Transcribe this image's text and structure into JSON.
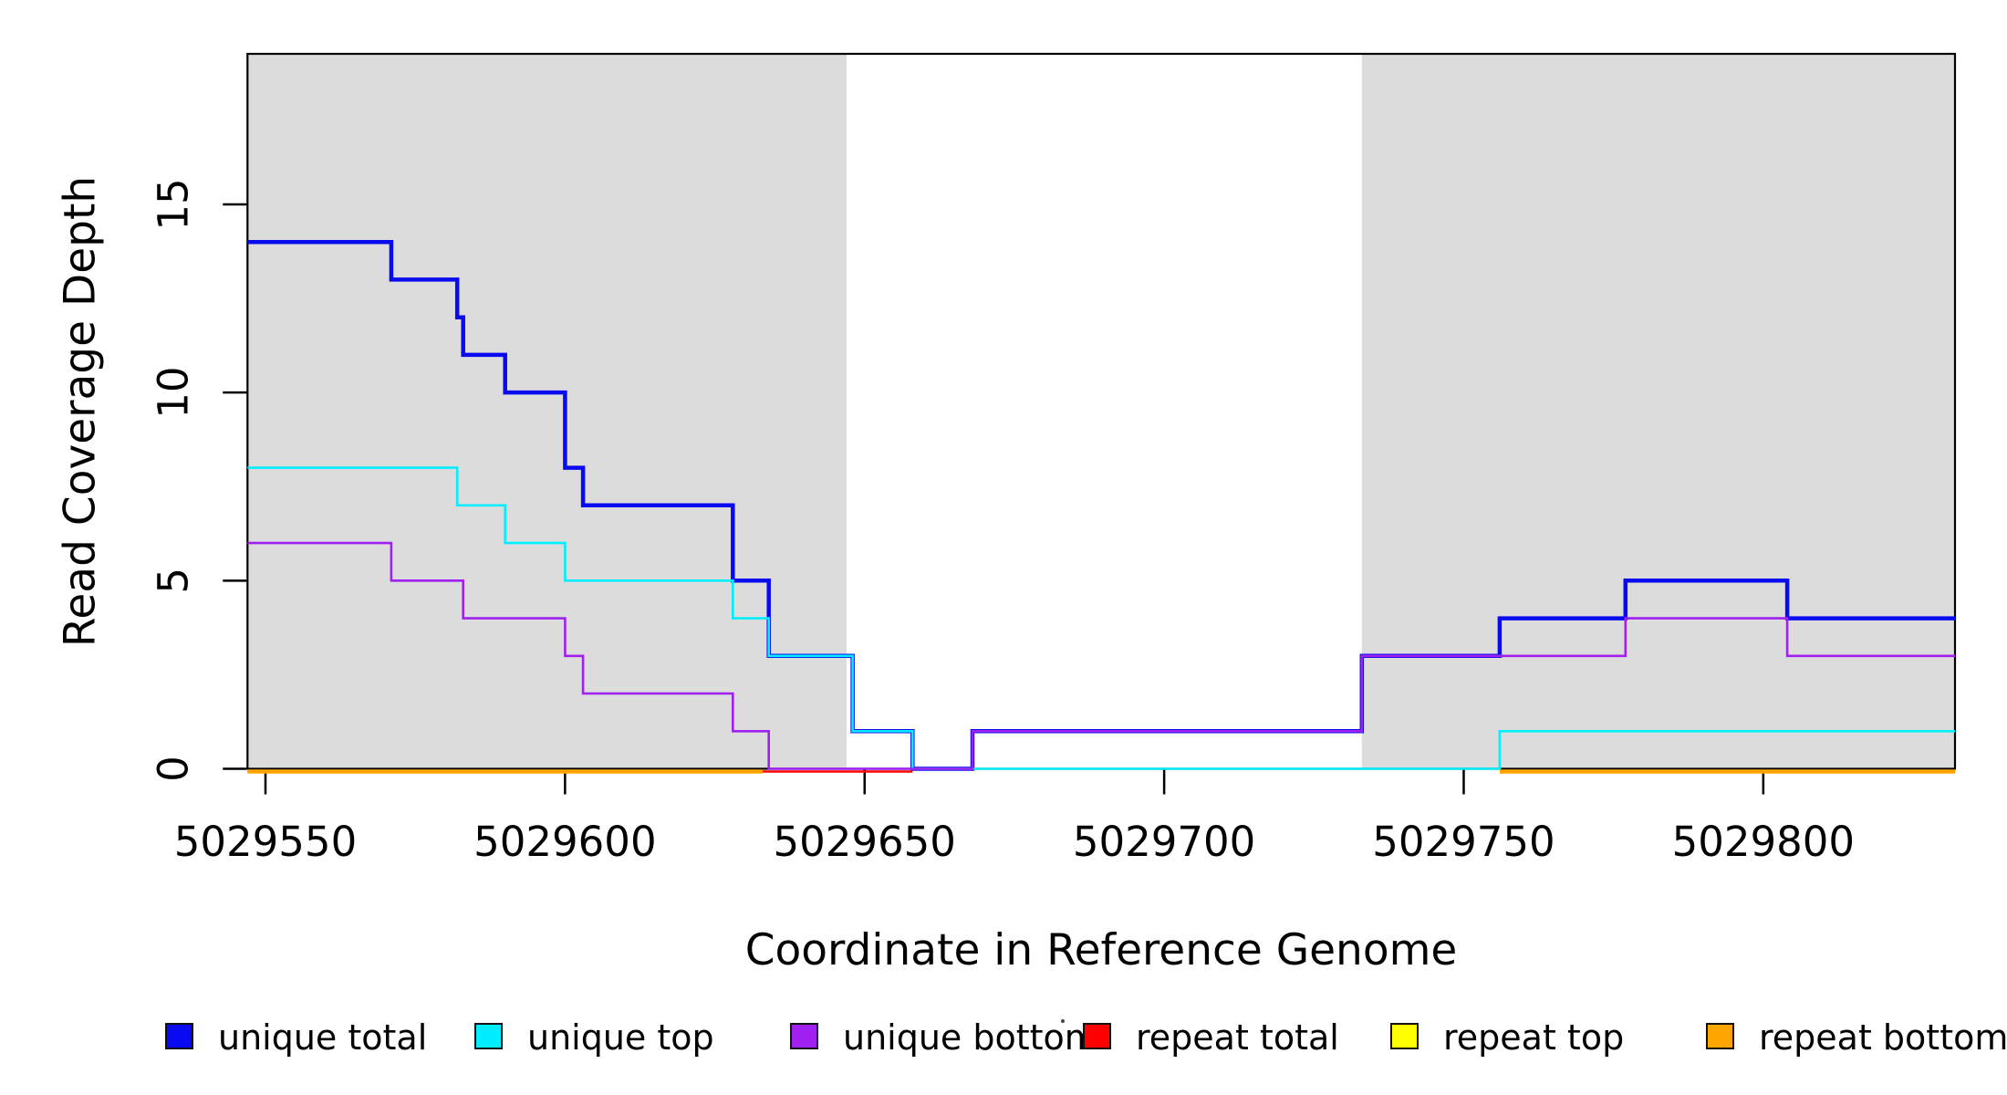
{
  "figure": {
    "background": "#FFFFFF",
    "x_axis": {
      "title": "Coordinate in Reference Genome",
      "tick_labels": [
        "5029550",
        "5029600",
        "5029650",
        "5029700",
        "5029750",
        "5029800"
      ],
      "tick_values": [
        5029550,
        5029600,
        5029650,
        5029700,
        5029750,
        5029800
      ]
    },
    "y_axis": {
      "title": "Read Coverage Depth",
      "tick_labels": [
        "0",
        "5",
        "10",
        "15"
      ],
      "tick_values": [
        0,
        5,
        10,
        15
      ]
    },
    "legend": {
      "items": [
        {
          "label": "unique total",
          "color": "#0A0AF0"
        },
        {
          "label": "unique top",
          "color": "#00EEFF"
        },
        {
          "label": "unique bottom",
          "color": "#A020F0"
        },
        {
          "label": "repeat total",
          "color": "#FF0000"
        },
        {
          "label": "repeat top",
          "color": "#FFFF00"
        },
        {
          "label": "repeat bottom",
          "color": "#FFA500"
        }
      ]
    }
  },
  "chart_data": {
    "type": "line",
    "subtype": "step",
    "title": "",
    "xlabel": "Coordinate in Reference Genome",
    "ylabel": "Read Coverage Depth",
    "xlim": [
      5029547,
      5029832
    ],
    "ylim": [
      0,
      19
    ],
    "x_ticks": [
      5029550,
      5029600,
      5029650,
      5029700,
      5029750,
      5029800
    ],
    "y_ticks": [
      0,
      5,
      10,
      15
    ],
    "grid": false,
    "legend_position": "bottom",
    "shaded_regions": [
      {
        "from": 5029547,
        "to": 5029647,
        "color": "#DCDCDC"
      },
      {
        "from": 5029733,
        "to": 5029832,
        "color": "#DCDCDC"
      }
    ],
    "series": [
      {
        "name": "unique total",
        "color": "#0A0AF0",
        "group": "unique",
        "segments": [
          {
            "steps": [
              [
                5029547,
                14
              ],
              [
                5029571,
                13
              ],
              [
                5029582,
                12
              ],
              [
                5029583,
                11
              ],
              [
                5029590,
                10
              ],
              [
                5029600,
                8
              ],
              [
                5029603,
                7
              ],
              [
                5029628,
                5
              ],
              [
                5029634,
                3
              ],
              [
                5029648,
                1
              ],
              [
                5029658,
                0
              ],
              [
                5029668,
                1
              ],
              [
                5029733,
                3
              ],
              [
                5029756,
                4
              ],
              [
                5029777,
                5
              ],
              [
                5029804,
                4
              ]
            ],
            "end": 5029832
          }
        ]
      },
      {
        "name": "unique top",
        "color": "#00EEFF",
        "group": "unique",
        "segments": [
          {
            "steps": [
              [
                5029547,
                8
              ],
              [
                5029582,
                7
              ],
              [
                5029590,
                6
              ],
              [
                5029600,
                5
              ],
              [
                5029628,
                4
              ],
              [
                5029634,
                3
              ],
              [
                5029648,
                1
              ],
              [
                5029658,
                0
              ],
              [
                5029756,
                1
              ]
            ],
            "end": 5029832
          }
        ]
      },
      {
        "name": "unique bottom",
        "color": "#A020F0",
        "group": "unique",
        "segments": [
          {
            "steps": [
              [
                5029547,
                6
              ],
              [
                5029571,
                5
              ],
              [
                5029583,
                4
              ],
              [
                5029600,
                3
              ],
              [
                5029603,
                2
              ],
              [
                5029628,
                1
              ],
              [
                5029634,
                0
              ],
              [
                5029668,
                1
              ],
              [
                5029733,
                3
              ],
              [
                5029777,
                4
              ],
              [
                5029804,
                3
              ]
            ],
            "end": 5029832
          }
        ]
      },
      {
        "name": "repeat total",
        "color": "#FF0000",
        "group": "repeat",
        "segments": [
          {
            "steps": [
              [
                5029547,
                0
              ]
            ],
            "end": 5029658
          }
        ]
      },
      {
        "name": "repeat top",
        "color": "#FFFF00",
        "group": "repeat",
        "segments": [
          {
            "steps": [
              [
                5029547,
                0
              ]
            ],
            "end": 5029633
          },
          {
            "steps": [
              [
                5029756,
                0
              ]
            ],
            "end": 5029832
          }
        ]
      },
      {
        "name": "repeat bottom",
        "color": "#FFA500",
        "group": "repeat",
        "segments": [
          {
            "steps": [
              [
                5029547,
                0
              ]
            ],
            "end": 5029633
          },
          {
            "steps": [
              [
                5029756,
                0
              ]
            ],
            "end": 5029832
          }
        ]
      }
    ]
  }
}
